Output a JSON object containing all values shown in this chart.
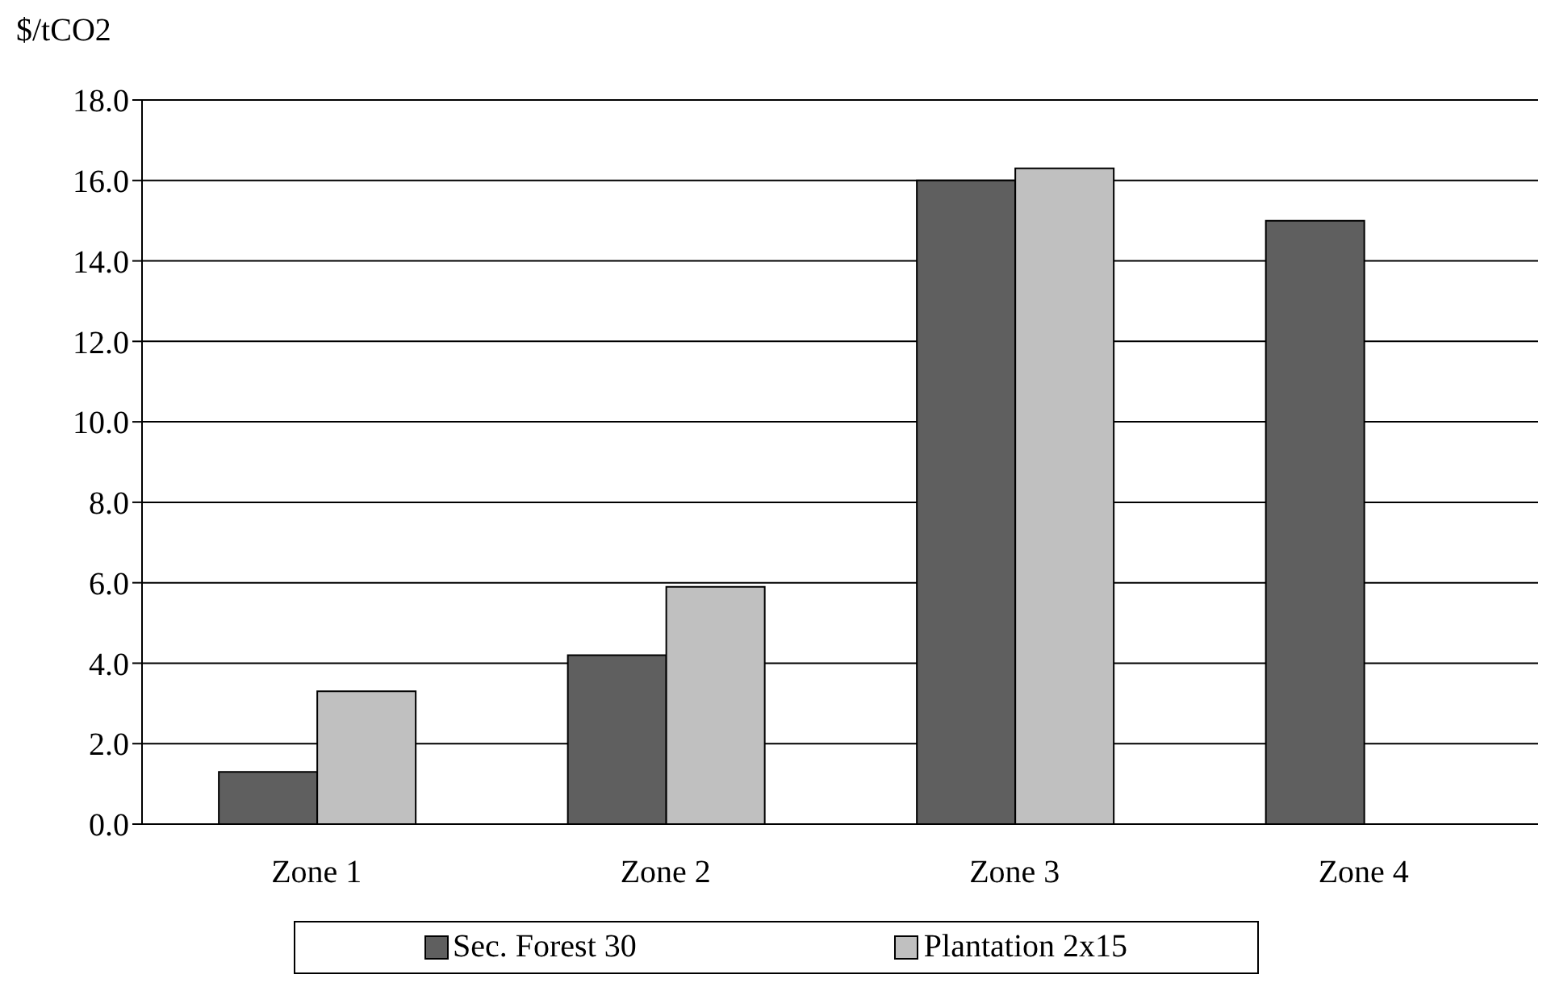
{
  "chart_data": {
    "type": "bar",
    "ylabel": "$/tCO2",
    "categories": [
      "Zone 1",
      "Zone 2",
      "Zone 3",
      "Zone 4"
    ],
    "series": [
      {
        "name": "Sec. Forest 30",
        "color": "#5f5f5f",
        "values": [
          1.3,
          4.2,
          16.0,
          15.0
        ]
      },
      {
        "name": "Plantation 2x15",
        "color": "#c0c0c0",
        "values": [
          3.3,
          5.9,
          16.3,
          null
        ]
      }
    ],
    "ylim": [
      0,
      18
    ],
    "yticks": [
      {
        "value": 0,
        "label": "0.0"
      },
      {
        "value": 2,
        "label": "2.0"
      },
      {
        "value": 4,
        "label": "4.0"
      },
      {
        "value": 6,
        "label": "6.0"
      },
      {
        "value": 8,
        "label": "8.0"
      },
      {
        "value": 10,
        "label": "10.0"
      },
      {
        "value": 12,
        "label": "12.0"
      },
      {
        "value": 14,
        "label": "14.0"
      },
      {
        "value": 16,
        "label": "16.0"
      },
      {
        "value": 18,
        "label": "18.0"
      }
    ],
    "grid": "y",
    "legend": "bottom"
  }
}
